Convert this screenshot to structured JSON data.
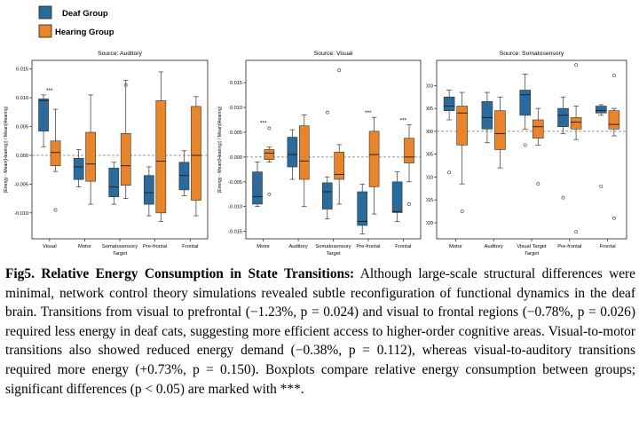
{
  "colors": {
    "deaf": "#2a6b9c",
    "hearing": "#e8842a",
    "median": "#1a1a1a",
    "ref_line": "#777777"
  },
  "legend": {
    "deaf": "Deaf Group",
    "hearing": "Hearing Group"
  },
  "figure": {
    "caption_title": "Fig5. Relative Energy Consumption in State Transitions:",
    "caption_body": "Although large-scale structural differences were minimal, network control theory simulations revealed subtle reconfiguration of functional dynamics in the deaf brain. Transitions from visual to prefrontal (−1.23%, p = 0.024) and visual to frontal regions (−0.78%, p = 0.026) required less energy in deaf cats, suggesting more efficient access to higher-order cognitive areas. Visual-to-motor transitions also showed reduced energy demand (−0.38%, p = 0.112), whereas visual-to-auditory transitions required more energy (+0.73%, p = 0.150). Boxplots compare relative energy consumption between groups; significant differences (p < 0.05) are marked with ***."
  },
  "chart_data": [
    {
      "type": "box",
      "title": "Source: Auditory",
      "xlabel": "Target",
      "ylabel": "(Energy - Mean(Hearing)) / Mean(Hearing)",
      "ylim": [
        -0.0145,
        0.0165
      ],
      "yticks": [
        "-0.010",
        "-0.005",
        "0.000",
        "0.005",
        "0.010",
        "0.015"
      ],
      "ytick_values": [
        -0.01,
        -0.005,
        0,
        0.005,
        0.01,
        0.015
      ],
      "categories": [
        "Visual",
        "Motor",
        "Somatosensory",
        "Pre-frontal",
        "Frontal"
      ],
      "significance": [
        "***",
        "",
        "",
        "",
        ""
      ],
      "series": [
        {
          "name": "Deaf Group",
          "boxes": [
            {
              "whislo": 0.0015,
              "q1": 0.0042,
              "med": 0.0095,
              "q3": 0.0098,
              "whishi": 0.0105,
              "fliers": []
            },
            {
              "whislo": -0.0055,
              "q1": -0.0042,
              "med": -0.002,
              "q3": -0.0005,
              "whishi": 0.001,
              "fliers": []
            },
            {
              "whislo": -0.0085,
              "q1": -0.0072,
              "med": -0.0055,
              "q3": -0.0022,
              "whishi": -0.0012,
              "fliers": []
            },
            {
              "whislo": -0.0105,
              "q1": -0.0085,
              "med": -0.0065,
              "q3": -0.0035,
              "whishi": -0.002,
              "fliers": []
            },
            {
              "whislo": -0.007,
              "q1": -0.006,
              "med": -0.0035,
              "q3": -0.0012,
              "whishi": 0.0008,
              "fliers": []
            }
          ]
        },
        {
          "name": "Hearing Group",
          "boxes": [
            {
              "whislo": -0.0028,
              "q1": -0.0018,
              "med": 0.0005,
              "q3": 0.0025,
              "whishi": 0.008,
              "fliers": [
                -0.0095
              ]
            },
            {
              "whislo": -0.0085,
              "q1": -0.0045,
              "med": -0.0015,
              "q3": 0.004,
              "whishi": 0.0105,
              "fliers": []
            },
            {
              "whislo": -0.0075,
              "q1": -0.0052,
              "med": -0.0018,
              "q3": 0.0038,
              "whishi": 0.013,
              "fliers": [
                0.0122
              ]
            },
            {
              "whislo": -0.0115,
              "q1": -0.01,
              "med": -0.001,
              "q3": 0.0095,
              "whishi": 0.0145,
              "fliers": []
            },
            {
              "whislo": -0.0105,
              "q1": -0.0078,
              "med": 0.0,
              "q3": 0.0085,
              "whishi": 0.0102,
              "fliers": []
            }
          ]
        }
      ]
    },
    {
      "type": "box",
      "title": "Source: Visual",
      "xlabel": "Target",
      "ylabel": "(Energy - Mean(Hearing)) / Mean(Hearing)",
      "ylim": [
        -0.0165,
        0.0195
      ],
      "yticks": [
        "-0.015",
        "-0.010",
        "-0.005",
        "0.000",
        "0.005",
        "0.010",
        "0.015"
      ],
      "ytick_values": [
        -0.015,
        -0.01,
        -0.005,
        0,
        0.005,
        0.01,
        0.015
      ],
      "categories": [
        "Motor",
        "Auditory",
        "Somatosensory",
        "Pre-frontal",
        "Frontal"
      ],
      "significance": [
        "***",
        "",
        "",
        "***",
        "***"
      ],
      "series": [
        {
          "name": "Deaf Group",
          "boxes": [
            {
              "whislo": -0.01,
              "q1": -0.0095,
              "med": -0.008,
              "q3": -0.003,
              "whishi": -0.001,
              "fliers": []
            },
            {
              "whislo": -0.0045,
              "q1": -0.002,
              "med": 0.0005,
              "q3": 0.004,
              "whishi": 0.0055,
              "fliers": []
            },
            {
              "whislo": -0.0125,
              "q1": -0.0105,
              "med": -0.007,
              "q3": -0.0052,
              "whishi": -0.004,
              "fliers": [
                0.009
              ]
            },
            {
              "whislo": -0.0155,
              "q1": -0.0138,
              "med": -0.013,
              "q3": -0.007,
              "whishi": -0.0055,
              "fliers": []
            },
            {
              "whislo": -0.013,
              "q1": -0.0112,
              "med": -0.011,
              "q3": -0.005,
              "whishi": -0.003,
              "fliers": []
            }
          ]
        },
        {
          "name": "Hearing Group",
          "boxes": [
            {
              "whislo": -0.001,
              "q1": -0.0005,
              "med": 0.0008,
              "q3": 0.0015,
              "whishi": 0.002,
              "fliers": [
                0.0058,
                -0.0075
              ]
            },
            {
              "whislo": -0.01,
              "q1": -0.0045,
              "med": -0.0008,
              "q3": 0.0063,
              "whishi": 0.0085,
              "fliers": []
            },
            {
              "whislo": -0.0095,
              "q1": -0.0045,
              "med": -0.0035,
              "q3": 0.001,
              "whishi": 0.0025,
              "fliers": [
                0.0175
              ]
            },
            {
              "whislo": -0.0115,
              "q1": -0.006,
              "med": 0.0005,
              "q3": 0.0052,
              "whishi": 0.008,
              "fliers": []
            },
            {
              "whislo": -0.005,
              "q1": -0.0012,
              "med": 0.0,
              "q3": 0.0038,
              "whishi": 0.0065,
              "fliers": [
                -0.0095
              ]
            }
          ]
        }
      ]
    },
    {
      "type": "box",
      "title": "Source: Somatosensory",
      "xlabel": "Target",
      "ylabel": "(Energy - Mean(Hearing)) / Mean(Hearing)",
      "ylim": [
        -0.0235,
        0.0155
      ],
      "yticks": [
        "-0.020",
        "-0.015",
        "-0.010",
        "-0.005",
        "0.000",
        "0.005",
        "0.010"
      ],
      "ytick_values": [
        -0.02,
        -0.015,
        -0.01,
        -0.005,
        0,
        0.005,
        0.01
      ],
      "categories": [
        "Motor",
        "Auditory",
        "Visual Target",
        "Pre-frontal",
        "Frontal"
      ],
      "significance": [
        "",
        "",
        "",
        "",
        ""
      ],
      "series": [
        {
          "name": "Deaf Group",
          "boxes": [
            {
              "whislo": 0.0025,
              "q1": 0.0045,
              "med": 0.0055,
              "q3": 0.0075,
              "whishi": 0.009,
              "fliers": [
                -0.009
              ]
            },
            {
              "whislo": -0.0025,
              "q1": 0.0005,
              "med": 0.003,
              "q3": 0.0065,
              "whishi": 0.0085,
              "fliers": []
            },
            {
              "whislo": 0.0005,
              "q1": 0.0035,
              "med": 0.008,
              "q3": 0.009,
              "whishi": 0.0125,
              "fliers": [
                -0.003
              ]
            },
            {
              "whislo": -0.0005,
              "q1": 0.001,
              "med": 0.0035,
              "q3": 0.005,
              "whishi": 0.0075,
              "fliers": [
                -0.0145
              ]
            },
            {
              "whislo": 0.0035,
              "q1": 0.004,
              "med": 0.0045,
              "q3": 0.0055,
              "whishi": 0.0058,
              "fliers": [
                -0.012
              ]
            }
          ]
        },
        {
          "name": "Hearing Group",
          "boxes": [
            {
              "whislo": -0.0115,
              "q1": -0.003,
              "med": 0.004,
              "q3": 0.0055,
              "whishi": 0.0085,
              "fliers": [
                -0.0175
              ]
            },
            {
              "whislo": -0.008,
              "q1": -0.004,
              "med": -0.0005,
              "q3": 0.0045,
              "whishi": 0.0075,
              "fliers": []
            },
            {
              "whislo": -0.003,
              "q1": -0.0015,
              "med": 0.001,
              "q3": 0.0025,
              "whishi": 0.005,
              "fliers": [
                -0.0115
              ]
            },
            {
              "whislo": -0.0018,
              "q1": 0.0005,
              "med": 0.002,
              "q3": 0.003,
              "whishi": 0.0055,
              "fliers": [
                0.0145,
                -0.022
              ]
            },
            {
              "whislo": -0.001,
              "q1": 0.0005,
              "med": 0.0015,
              "q3": 0.0045,
              "whishi": 0.005,
              "fliers": [
                0.0122,
                -0.019
              ]
            }
          ]
        }
      ]
    }
  ]
}
